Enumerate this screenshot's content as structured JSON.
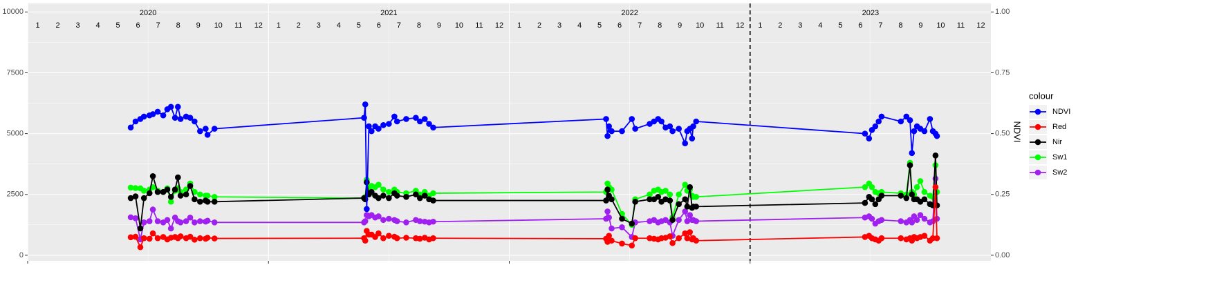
{
  "chart_data": {
    "type": "line",
    "x": [
      2020.428,
      2020.448,
      2020.468,
      2020.483,
      2020.506,
      2020.52,
      2020.54,
      2020.563,
      2020.58,
      2020.595,
      2020.612,
      2020.624,
      2020.635,
      2020.658,
      2020.675,
      2020.693,
      2020.716,
      2020.739,
      2020.747,
      2020.776,
      2021.397,
      2021.402,
      2021.408,
      2021.417,
      2021.428,
      2021.443,
      2021.457,
      2021.477,
      2021.5,
      2021.523,
      2021.534,
      2021.572,
      2021.612,
      2021.629,
      2021.649,
      2021.667,
      2021.684,
      2022.402,
      2022.408,
      2022.414,
      2022.425,
      2022.468,
      2022.509,
      2022.523,
      2022.583,
      2022.601,
      2022.618,
      2022.632,
      2022.649,
      2022.667,
      2022.678,
      2022.704,
      2022.73,
      2022.739,
      2022.75,
      2022.759,
      2022.764,
      2022.776,
      2023.477,
      2023.494,
      2023.506,
      2023.52,
      2023.534,
      2023.546,
      2023.626,
      2023.649,
      2023.664,
      2023.672,
      2023.681,
      2023.693,
      2023.707,
      2023.724,
      2023.747,
      2023.759,
      2023.77,
      2023.776
    ],
    "series": [
      {
        "name": "NDVI",
        "color": "#0000ff",
        "axis": "y2",
        "values": [
          0.525,
          0.55,
          0.56,
          0.57,
          0.575,
          0.58,
          0.59,
          0.575,
          0.6,
          0.61,
          0.565,
          0.61,
          0.56,
          0.57,
          0.565,
          0.55,
          0.51,
          0.52,
          0.495,
          0.52,
          0.565,
          0.62,
          0.19,
          0.53,
          0.51,
          0.53,
          0.52,
          0.535,
          0.54,
          0.57,
          0.55,
          0.56,
          0.565,
          0.55,
          0.56,
          0.54,
          0.525,
          0.56,
          0.49,
          0.53,
          0.51,
          0.51,
          0.56,
          0.52,
          0.54,
          0.55,
          0.56,
          0.55,
          0.525,
          0.53,
          0.51,
          0.52,
          0.46,
          0.51,
          0.52,
          0.48,
          0.53,
          0.55,
          0.5,
          0.48,
          0.515,
          0.53,
          0.55,
          0.57,
          0.55,
          0.57,
          0.555,
          0.42,
          0.51,
          0.53,
          0.52,
          0.51,
          0.56,
          0.51,
          0.5,
          0.49
        ]
      },
      {
        "name": "Red",
        "color": "#ff0000",
        "values": [
          740,
          760,
          330,
          700,
          680,
          900,
          700,
          750,
          650,
          720,
          750,
          700,
          780,
          700,
          760,
          640,
          700,
          680,
          720,
          690,
          700,
          600,
          1000,
          850,
          850,
          750,
          900,
          700,
          800,
          760,
          700,
          720,
          700,
          680,
          720,
          650,
          700,
          680,
          550,
          800,
          600,
          480,
          400,
          700,
          700,
          680,
          650,
          700,
          720,
          780,
          500,
          700,
          900,
          700,
          950,
          650,
          700,
          600,
          750,
          800,
          700,
          650,
          600,
          700,
          700,
          650,
          700,
          600,
          750,
          700,
          750,
          800,
          600,
          700,
          2800,
          700
        ]
      },
      {
        "name": "Nir",
        "color": "#000000",
        "values": [
          2350,
          2420,
          1100,
          2350,
          2550,
          3250,
          2600,
          2600,
          2700,
          2400,
          2700,
          3200,
          2450,
          2500,
          2850,
          2300,
          2200,
          2250,
          2200,
          2200,
          2350,
          2300,
          3000,
          2500,
          2600,
          2450,
          2350,
          2450,
          2350,
          2550,
          2450,
          2400,
          2500,
          2350,
          2450,
          2300,
          2250,
          2250,
          2700,
          2450,
          2300,
          1500,
          1300,
          2200,
          2300,
          2300,
          2400,
          2200,
          2300,
          2250,
          1450,
          2100,
          2300,
          2000,
          2800,
          1950,
          2000,
          2000,
          2150,
          2400,
          2300,
          2100,
          2300,
          2450,
          2450,
          2350,
          3700,
          2500,
          2300,
          2300,
          2200,
          2300,
          2100,
          2050,
          4100,
          2050
        ]
      },
      {
        "name": "Sw1",
        "color": "#00ff00",
        "values": [
          2780,
          2760,
          2750,
          2650,
          2700,
          2800,
          2650,
          2600,
          2750,
          2200,
          2650,
          2750,
          2600,
          2700,
          2950,
          2600,
          2500,
          2450,
          2450,
          2400,
          2350,
          2400,
          3100,
          2700,
          2850,
          2800,
          2900,
          2700,
          2600,
          2700,
          2600,
          2550,
          2650,
          2500,
          2600,
          2450,
          2550,
          2600,
          2950,
          2800,
          2700,
          1700,
          1250,
          2300,
          2500,
          2650,
          2700,
          2600,
          2650,
          2500,
          1550,
          2500,
          2900,
          2650,
          2700,
          2450,
          2400,
          2400,
          2800,
          2950,
          2800,
          2600,
          2550,
          2600,
          2550,
          2500,
          3800,
          2600,
          2500,
          2800,
          3050,
          2600,
          2450,
          2400,
          3700,
          2600
        ]
      },
      {
        "name": "Sw2",
        "color": "#a020f0",
        "values": [
          1560,
          1520,
          650,
          1350,
          1400,
          1880,
          1400,
          1350,
          1450,
          1100,
          1550,
          1400,
          1350,
          1400,
          1550,
          1350,
          1400,
          1380,
          1420,
          1350,
          1350,
          1400,
          1650,
          1600,
          1650,
          1550,
          1600,
          1450,
          1500,
          1450,
          1400,
          1350,
          1450,
          1400,
          1380,
          1350,
          1380,
          1500,
          1800,
          1550,
          1100,
          1150,
          750,
          1350,
          1400,
          1450,
          1350,
          1400,
          1450,
          1350,
          800,
          1450,
          1800,
          1400,
          1650,
          1450,
          1450,
          1400,
          1550,
          1600,
          1500,
          1300,
          1400,
          1450,
          1400,
          1350,
          1450,
          1350,
          1600,
          1450,
          1650,
          1500,
          1350,
          1400,
          3150,
          1500
        ]
      }
    ],
    "xlim": [
      2020,
      2024
    ],
    "xticks": [
      2020,
      2021,
      2022,
      2023
    ],
    "ylim": [
      -230,
      10350
    ],
    "yticks": [
      0,
      2500,
      5000,
      7500,
      10000
    ],
    "y2lim": [
      -0.023,
      1.035
    ],
    "y2ticks": [
      {
        "value": 0,
        "label": "0.00"
      },
      {
        "value": 0.25,
        "label": "0.25"
      },
      {
        "value": 0.5,
        "label": "0.50"
      },
      {
        "value": 0.75,
        "label": "0.75"
      },
      {
        "value": 1,
        "label": "1.00"
      }
    ],
    "y2_label": "NDVI",
    "legend_title": "colour",
    "legend_position": "right",
    "grid": true,
    "vline": 2023,
    "year_labels": [
      "2020",
      "2021",
      "2022",
      "2023"
    ],
    "month_labels": [
      "1",
      "2",
      "3",
      "4",
      "5",
      "6",
      "7",
      "8",
      "9",
      "10",
      "11",
      "12"
    ]
  }
}
